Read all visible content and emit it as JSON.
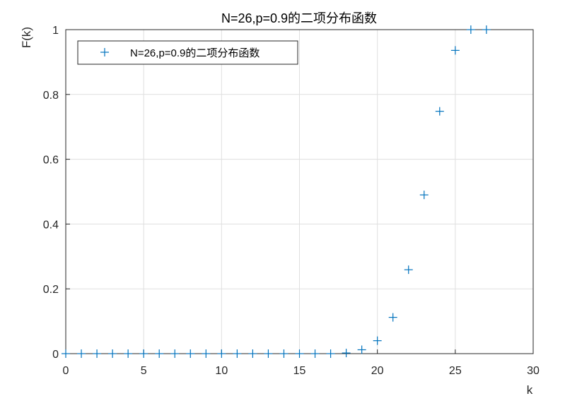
{
  "chart_data": {
    "type": "scatter",
    "title": "N=26,p=0.9的二项分布函数",
    "xlabel": "k",
    "ylabel": "F(k)",
    "xlim": [
      0,
      30
    ],
    "ylim": [
      0,
      1
    ],
    "xticks": [
      "0",
      "5",
      "10",
      "15",
      "20",
      "25",
      "30"
    ],
    "yticks": [
      "0",
      "0.2",
      "0.4",
      "0.6",
      "0.8",
      "1"
    ],
    "grid": true,
    "legend_position": "top-left",
    "marker": "+",
    "color": "#0072BD",
    "series": [
      {
        "name": "N=26,p=0.9的二项分布函数",
        "x": [
          0,
          1,
          2,
          3,
          4,
          5,
          6,
          7,
          8,
          9,
          10,
          11,
          12,
          13,
          14,
          15,
          16,
          17,
          18,
          19,
          20,
          21,
          22,
          23,
          24,
          25,
          26,
          27
        ],
        "y": [
          0,
          0,
          0,
          0,
          0,
          0,
          0,
          0,
          0,
          0,
          0,
          0,
          0,
          0,
          0,
          0,
          0,
          0,
          0.002,
          0.012,
          0.04,
          0.112,
          0.259,
          0.49,
          0.748,
          0.936,
          1,
          1
        ]
      }
    ]
  }
}
